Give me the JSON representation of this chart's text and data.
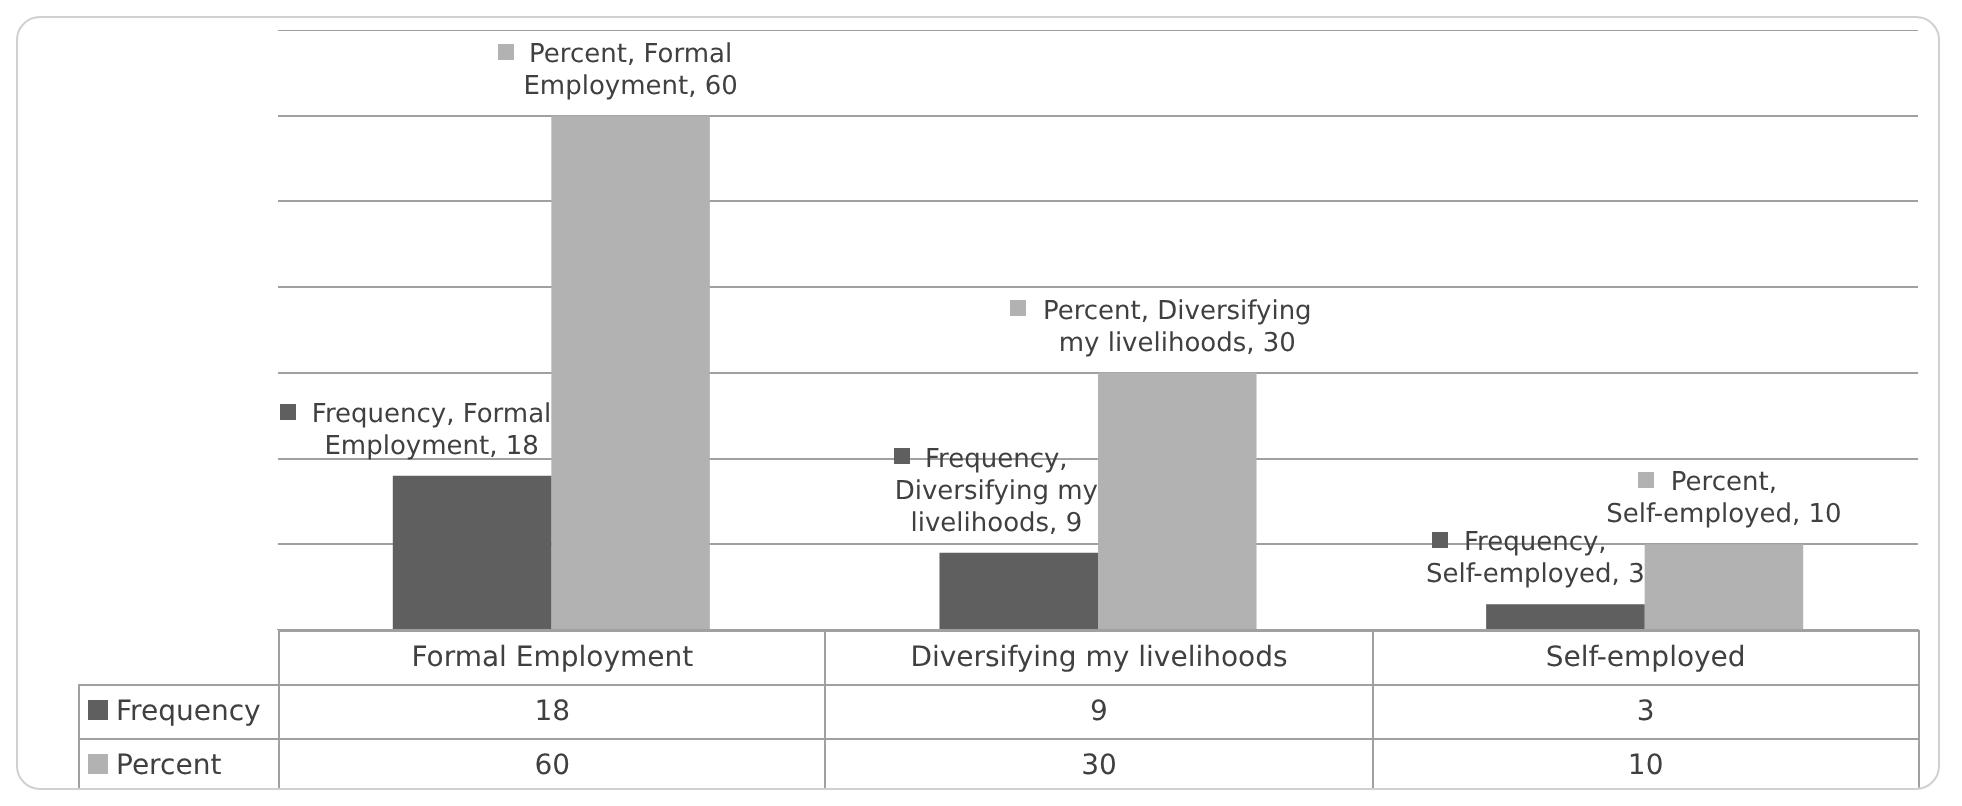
{
  "chart_data": {
    "type": "bar",
    "categories": [
      "Formal Employment",
      "Diversifying my livelihoods",
      "Self-employed"
    ],
    "series": [
      {
        "name": "Frequency",
        "color": "#5f5f5f",
        "values": [
          18,
          9,
          3
        ]
      },
      {
        "name": "Percent",
        "color": "#b2b2b2",
        "values": [
          60,
          30,
          10
        ]
      }
    ],
    "annotations": [
      {
        "text": "Frequency, Formal Employment, 18",
        "x": "Formal Employment",
        "y": 18
      },
      {
        "text": "Frequency, Diversifying my livelihoods, 9",
        "x": "Diversifying my livelihoods",
        "y": 9
      },
      {
        "text": "Frequency, Self-employed, 3",
        "x": "Self-employed",
        "y": 3
      },
      {
        "text": "Percent, Formal Employment, 60",
        "x": "Formal Employment",
        "y": 60
      },
      {
        "text": "Percent, Diversifying my livelihoods, 30",
        "x": "Diversifying my livelihoods",
        "y": 30
      },
      {
        "text": "Percent, Self-employed, 10",
        "x": "Self-employed",
        "y": 10
      }
    ],
    "ylim": [
      0,
      70
    ],
    "yticks": [
      {
        "value": 0,
        "label": null
      },
      {
        "value": 10,
        "label": null
      },
      {
        "value": 20,
        "label": null
      },
      {
        "value": 30,
        "label": null
      },
      {
        "value": 40,
        "label": null
      },
      {
        "value": 50,
        "label": null
      },
      {
        "value": 60,
        "label": null
      },
      {
        "value": 70,
        "label": null
      }
    ],
    "grid": "y",
    "tick_labels": "x",
    "data_labels": true,
    "legend": "bottom left"
  }
}
